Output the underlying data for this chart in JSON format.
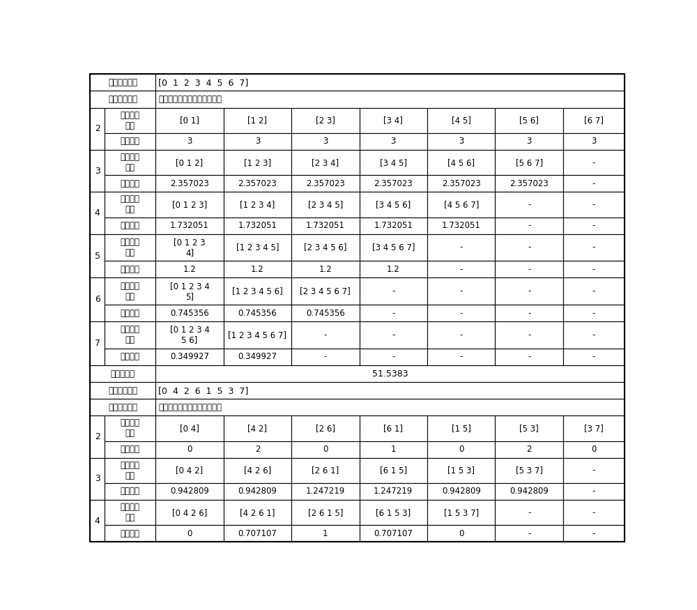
{
  "fig_width": 10.0,
  "fig_height": 8.75,
  "background_color": "#ffffff",
  "table1": {
    "header_row1_left": "时隙映射方案",
    "header_row1_right": "[0  1  2  3  4  5  6  7]",
    "header_row2_left": "分配时隙数目",
    "header_row2_right": "各种时隙分配组合的均方误差",
    "sections": [
      {
        "num": "2",
        "combo_label": "时隙分配\n组合",
        "combos": [
          "[0 1]",
          "[1 2]",
          "[2 3]",
          "[3 4]",
          "[4 5]",
          "[5 6]",
          "[6 7]"
        ],
        "mse_label": "均方误差",
        "mses": [
          "3",
          "3",
          "3",
          "3",
          "3",
          "3",
          "3"
        ]
      },
      {
        "num": "3",
        "combo_label": "时隙分配\n组合",
        "combos": [
          "[0 1 2]",
          "[1 2 3]",
          "[2 3 4]",
          "[3 4 5]",
          "[4 5 6]",
          "[5 6 7]",
          "-"
        ],
        "mse_label": "均方误差",
        "mses": [
          "2.357023",
          "2.357023",
          "2.357023",
          "2.357023",
          "2.357023",
          "2.357023",
          "-"
        ]
      },
      {
        "num": "4",
        "combo_label": "时隙分配\n组合",
        "combos": [
          "[0 1 2 3]",
          "[1 2 3 4]",
          "[2 3 4 5]",
          "[3 4 5 6]",
          "[4 5 6 7]",
          "-",
          "-"
        ],
        "mse_label": "均方误差",
        "mses": [
          "1.732051",
          "1.732051",
          "1.732051",
          "1.732051",
          "1.732051",
          "-",
          "-"
        ]
      },
      {
        "num": "5",
        "combo_label": "时隙分配\n组合",
        "combos": [
          "[0 1 2 3\n4]",
          "[1 2 3 4 5]",
          "[2 3 4 5 6]",
          "[3 4 5 6 7]",
          "-",
          "-",
          "-"
        ],
        "mse_label": "均方误差",
        "mses": [
          "1.2",
          "1.2",
          "1.2",
          "1.2",
          "-",
          "-",
          "-"
        ]
      },
      {
        "num": "6",
        "combo_label": "时隙分配\n组合",
        "combos": [
          "[0 1 2 3 4\n5]",
          "[1 2 3 4 5 6]",
          "[2 3 4 5 6 7]",
          "-",
          "-",
          "-",
          "-"
        ],
        "mse_label": "均方误差",
        "mses": [
          "0.745356",
          "0.745356",
          "0.745356",
          "-",
          "-",
          "-",
          "-"
        ]
      },
      {
        "num": "7",
        "combo_label": "时隙分配\n组合",
        "combos": [
          "[0 1 2 3 4\n5 6]",
          "[1 2 3 4 5 6 7]",
          "-",
          "-",
          "-",
          "-",
          "-"
        ],
        "mse_label": "均方误差",
        "mses": [
          "0.349927",
          "0.349927",
          "-",
          "-",
          "-",
          "-",
          "-"
        ]
      }
    ],
    "sum_label": "均方误差和",
    "sum_value": "51.5383"
  },
  "table2": {
    "header_row1_left": "时隙映射方案",
    "header_row1_right": "[0  4  2  6  1  5  3  7]",
    "header_row2_left": "分配时隙数目",
    "header_row2_right": "各种时隙分配组合的均方误差",
    "sections": [
      {
        "num": "2",
        "combo_label": "时隙分配\n组合",
        "combos": [
          "[0 4]",
          "[4 2]",
          "[2 6]",
          "[6 1]",
          "[1 5]",
          "[5 3]",
          "[3 7]"
        ],
        "mse_label": "均方误差",
        "mses": [
          "0",
          "2",
          "0",
          "1",
          "0",
          "2",
          "0"
        ]
      },
      {
        "num": "3",
        "combo_label": "时隙分配\n组合",
        "combos": [
          "[0 4 2]",
          "[4 2 6]",
          "[2 6 1]",
          "[6 1 5]",
          "[1 5 3]",
          "[5 3 7]",
          "-"
        ],
        "mse_label": "均方误差",
        "mses": [
          "0.942809",
          "0.942809",
          "1.247219",
          "1.247219",
          "0.942809",
          "0.942809",
          "-"
        ]
      },
      {
        "num": "4",
        "combo_label": "时隙分配\n组合",
        "combos": [
          "[0 4 2 6]",
          "[4 2 6 1]",
          "[2 6 1 5]",
          "[6 1 5 3]",
          "[1 5 3 7]",
          "-",
          "-"
        ],
        "mse_label": "均方误差",
        "mses": [
          "0",
          "0.707107",
          "1",
          "0.707107",
          "0",
          "-",
          "-"
        ]
      }
    ]
  }
}
